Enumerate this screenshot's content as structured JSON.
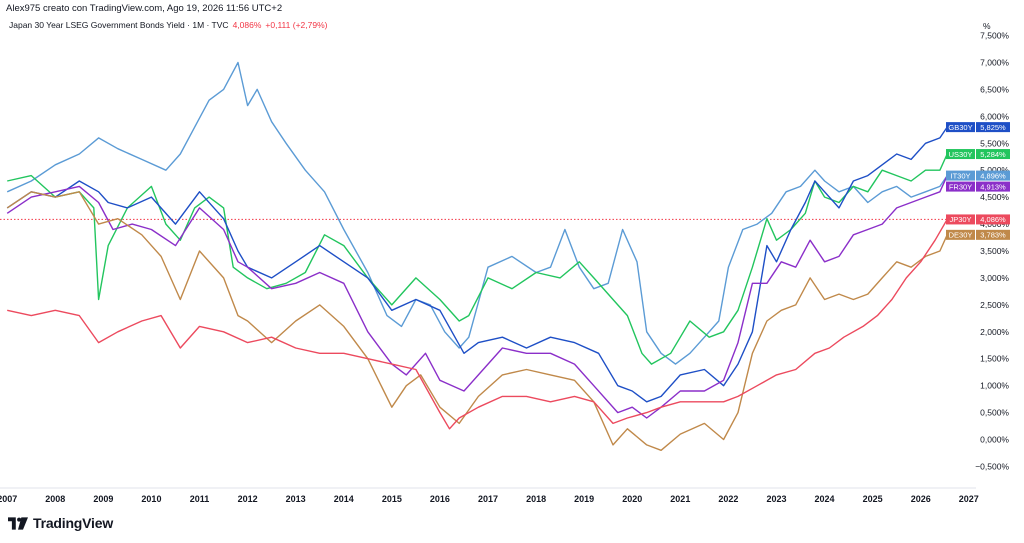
{
  "header": {
    "author_line": "Alex975 creato con TradingView.com, Ago 19, 2026 11:56 UTC+2"
  },
  "symbol": {
    "name": "Japan 30 Year LSEG Government Bonds Yield · 1M · TVC",
    "value": "4,086%",
    "change": "+0,111 (+2,79%)"
  },
  "brand": {
    "name": "TradingView",
    "logo_icon": "tradingview-logo-icon"
  },
  "chart_data": {
    "type": "line",
    "ylabel_unit": "%",
    "ylim": [
      -0.9,
      7.9
    ],
    "xlim": [
      2006.85,
      2027.15
    ],
    "y_ticks": [
      {
        "v": 7.5,
        "label": "7,500%"
      },
      {
        "v": 7.0,
        "label": "7,000%"
      },
      {
        "v": 6.5,
        "label": "6,500%"
      },
      {
        "v": 6.0,
        "label": "6,000%"
      },
      {
        "v": 5.5,
        "label": "5,500%"
      },
      {
        "v": 5.0,
        "label": "5,000%"
      },
      {
        "v": 4.5,
        "label": "4,500%"
      },
      {
        "v": 4.0,
        "label": "4,000%"
      },
      {
        "v": 3.5,
        "label": "3,500%"
      },
      {
        "v": 3.0,
        "label": "3,000%"
      },
      {
        "v": 2.5,
        "label": "2,500%"
      },
      {
        "v": 2.0,
        "label": "2,000%"
      },
      {
        "v": 1.5,
        "label": "1,500%"
      },
      {
        "v": 1.0,
        "label": "1,000%"
      },
      {
        "v": 0.5,
        "label": "0,500%"
      },
      {
        "v": 0.0,
        "label": "0,000%"
      },
      {
        "v": -0.5,
        "label": "−0,500%"
      }
    ],
    "x_ticks": [
      "2007",
      "2008",
      "2009",
      "2010",
      "2011",
      "2012",
      "2013",
      "2014",
      "2015",
      "2016",
      "2017",
      "2018",
      "2019",
      "2020",
      "2021",
      "2022",
      "2023",
      "2024",
      "2025",
      "2026",
      "2027"
    ],
    "reference_line": {
      "y": 4.086,
      "color": "#f23645"
    },
    "series": [
      {
        "name": "IT30Y",
        "tag_value": "4,896%",
        "color": "#5b9bd5",
        "x": [
          2007,
          2007.5,
          2008,
          2008.5,
          2008.9,
          2009.3,
          2009.8,
          2010.3,
          2010.6,
          2010.9,
          2011.2,
          2011.5,
          2011.8,
          2012,
          2012.2,
          2012.5,
          2012.8,
          2013.2,
          2013.6,
          2014,
          2014.5,
          2014.9,
          2015.2,
          2015.5,
          2015.8,
          2016.1,
          2016.4,
          2016.6,
          2017,
          2017.5,
          2018,
          2018.3,
          2018.6,
          2018.9,
          2019.2,
          2019.5,
          2019.8,
          2020.1,
          2020.3,
          2020.6,
          2020.9,
          2021.2,
          2021.5,
          2021.8,
          2022,
          2022.3,
          2022.6,
          2022.9,
          2023.2,
          2023.5,
          2023.8,
          2024,
          2024.3,
          2024.6,
          2024.9,
          2025.2,
          2025.5,
          2025.8,
          2026.1,
          2026.4,
          2026.55
        ],
        "y": [
          4.6,
          4.8,
          5.1,
          5.3,
          5.6,
          5.4,
          5.2,
          5.0,
          5.3,
          5.8,
          6.3,
          6.5,
          7.0,
          6.2,
          6.5,
          5.9,
          5.5,
          5.0,
          4.6,
          3.9,
          3.1,
          2.3,
          2.1,
          2.6,
          2.5,
          2.0,
          1.7,
          1.9,
          3.2,
          3.4,
          3.1,
          3.2,
          3.9,
          3.2,
          2.8,
          2.9,
          3.9,
          3.3,
          2.0,
          1.6,
          1.4,
          1.6,
          1.9,
          2.2,
          3.2,
          3.9,
          4.0,
          4.2,
          4.6,
          4.7,
          5.0,
          4.8,
          4.6,
          4.7,
          4.4,
          4.6,
          4.7,
          4.5,
          4.6,
          4.7,
          4.9
        ]
      },
      {
        "name": "US30Y",
        "tag_value": "5,284%",
        "color": "#22c55e",
        "x": [
          2007,
          2007.5,
          2008,
          2008.5,
          2008.8,
          2008.9,
          2009.1,
          2009.5,
          2010,
          2010.3,
          2010.6,
          2010.9,
          2011.2,
          2011.5,
          2011.7,
          2012,
          2012.4,
          2012.8,
          2013.2,
          2013.6,
          2014,
          2014.5,
          2015,
          2015.5,
          2016,
          2016.4,
          2016.6,
          2017,
          2017.5,
          2018,
          2018.5,
          2018.9,
          2019.2,
          2019.6,
          2019.9,
          2020.2,
          2020.4,
          2020.8,
          2021.2,
          2021.6,
          2021.9,
          2022.2,
          2022.5,
          2022.8,
          2023,
          2023.3,
          2023.6,
          2023.8,
          2024,
          2024.3,
          2024.6,
          2024.9,
          2025.2,
          2025.5,
          2025.8,
          2026.1,
          2026.4,
          2026.55
        ],
        "y": [
          4.8,
          4.9,
          4.5,
          4.6,
          4.3,
          2.6,
          3.6,
          4.3,
          4.7,
          4.0,
          3.7,
          4.3,
          4.5,
          4.3,
          3.2,
          3.0,
          2.8,
          2.9,
          3.1,
          3.8,
          3.6,
          3.0,
          2.5,
          3.0,
          2.6,
          2.2,
          2.3,
          3.0,
          2.8,
          3.1,
          3.0,
          3.3,
          3.0,
          2.6,
          2.3,
          1.6,
          1.4,
          1.6,
          2.2,
          1.9,
          2.0,
          2.4,
          3.2,
          4.1,
          3.7,
          3.9,
          4.2,
          4.8,
          4.5,
          4.4,
          4.7,
          4.6,
          5.0,
          4.9,
          4.8,
          5.0,
          5.0,
          5.3
        ]
      },
      {
        "name": "GB30Y",
        "tag_value": "5,825%",
        "color": "#1e4fc6",
        "x": [
          2007,
          2007.5,
          2008,
          2008.5,
          2008.9,
          2009.1,
          2009.5,
          2010,
          2010.5,
          2011,
          2011.5,
          2011.8,
          2012,
          2012.5,
          2013,
          2013.5,
          2014,
          2014.5,
          2015,
          2015.5,
          2016,
          2016.5,
          2016.8,
          2017.3,
          2017.8,
          2018.3,
          2018.8,
          2019.3,
          2019.7,
          2020,
          2020.3,
          2020.6,
          2021,
          2021.5,
          2021.9,
          2022.2,
          2022.5,
          2022.8,
          2023,
          2023.3,
          2023.6,
          2023.8,
          2024,
          2024.3,
          2024.6,
          2024.9,
          2025.2,
          2025.5,
          2025.8,
          2026.1,
          2026.4,
          2026.55
        ],
        "y": [
          4.3,
          4.6,
          4.5,
          4.8,
          4.6,
          4.4,
          4.3,
          4.5,
          4.0,
          4.6,
          4.1,
          3.5,
          3.2,
          3.0,
          3.3,
          3.6,
          3.3,
          3.0,
          2.4,
          2.6,
          2.4,
          1.6,
          1.8,
          1.9,
          1.7,
          1.9,
          1.8,
          1.6,
          1.0,
          0.9,
          0.7,
          0.8,
          1.2,
          1.3,
          1.0,
          1.4,
          2.0,
          3.6,
          3.3,
          3.9,
          4.4,
          4.8,
          4.6,
          4.3,
          4.8,
          4.9,
          5.1,
          5.3,
          5.2,
          5.5,
          5.6,
          5.8
        ]
      },
      {
        "name": "FR30Y",
        "tag_value": "4,913%",
        "color": "#8b2fc9",
        "x": [
          2007,
          2007.5,
          2008,
          2008.5,
          2008.9,
          2009.2,
          2009.6,
          2010,
          2010.5,
          2011,
          2011.5,
          2011.8,
          2012,
          2012.5,
          2013,
          2013.5,
          2014,
          2014.5,
          2015,
          2015.3,
          2015.7,
          2016,
          2016.5,
          2016.8,
          2017.3,
          2017.8,
          2018.3,
          2018.8,
          2019.2,
          2019.7,
          2020,
          2020.3,
          2020.6,
          2021,
          2021.5,
          2021.9,
          2022.2,
          2022.5,
          2022.8,
          2023.1,
          2023.4,
          2023.7,
          2024,
          2024.3,
          2024.6,
          2024.9,
          2025.2,
          2025.5,
          2025.8,
          2026.1,
          2026.4,
          2026.55
        ],
        "y": [
          4.2,
          4.5,
          4.6,
          4.7,
          4.4,
          3.9,
          4.0,
          3.9,
          3.6,
          4.3,
          3.9,
          3.3,
          3.2,
          2.8,
          2.9,
          3.1,
          2.9,
          2.0,
          1.4,
          1.2,
          1.6,
          1.1,
          0.9,
          1.2,
          1.7,
          1.6,
          1.6,
          1.4,
          1.0,
          0.5,
          0.6,
          0.4,
          0.6,
          0.9,
          0.9,
          1.1,
          1.8,
          2.9,
          2.9,
          3.3,
          3.2,
          3.7,
          3.3,
          3.4,
          3.8,
          3.9,
          4.0,
          4.3,
          4.4,
          4.5,
          4.6,
          4.9
        ]
      },
      {
        "name": "DE30Y",
        "tag_value": "3,783%",
        "color": "#c0894a",
        "x": [
          2007,
          2007.5,
          2008,
          2008.5,
          2008.9,
          2009.3,
          2009.8,
          2010.2,
          2010.6,
          2011,
          2011.5,
          2011.8,
          2012,
          2012.5,
          2013,
          2013.5,
          2014,
          2014.5,
          2015,
          2015.3,
          2015.6,
          2016,
          2016.4,
          2016.8,
          2017.3,
          2017.8,
          2018.3,
          2018.8,
          2019.2,
          2019.6,
          2019.9,
          2020.3,
          2020.6,
          2021,
          2021.5,
          2021.9,
          2022.2,
          2022.5,
          2022.8,
          2023.1,
          2023.4,
          2023.7,
          2024,
          2024.3,
          2024.6,
          2024.9,
          2025.2,
          2025.5,
          2025.8,
          2026.1,
          2026.4,
          2026.55
        ],
        "y": [
          4.3,
          4.6,
          4.5,
          4.6,
          4.0,
          4.1,
          3.8,
          3.4,
          2.6,
          3.5,
          3.0,
          2.3,
          2.2,
          1.8,
          2.2,
          2.5,
          2.1,
          1.5,
          0.6,
          1.0,
          1.2,
          0.6,
          0.3,
          0.8,
          1.2,
          1.3,
          1.2,
          1.1,
          0.7,
          -0.1,
          0.2,
          -0.1,
          -0.2,
          0.1,
          0.3,
          0.0,
          0.5,
          1.6,
          2.2,
          2.4,
          2.5,
          3.0,
          2.6,
          2.7,
          2.6,
          2.7,
          3.0,
          3.3,
          3.2,
          3.4,
          3.5,
          3.8
        ]
      },
      {
        "name": "JP30Y",
        "tag_value": "4,086%",
        "color": "#ec4a5e",
        "x": [
          2007,
          2007.5,
          2008,
          2008.5,
          2008.9,
          2009.3,
          2009.8,
          2010.2,
          2010.6,
          2011,
          2011.5,
          2012,
          2012.5,
          2013,
          2013.5,
          2014,
          2014.5,
          2015,
          2015.5,
          2016,
          2016.2,
          2016.4,
          2016.8,
          2017.3,
          2017.8,
          2018.3,
          2018.8,
          2019.2,
          2019.6,
          2019.9,
          2020.3,
          2020.6,
          2021,
          2021.5,
          2021.9,
          2022.2,
          2022.6,
          2023,
          2023.4,
          2023.8,
          2024.1,
          2024.4,
          2024.8,
          2025.1,
          2025.4,
          2025.7,
          2026,
          2026.3,
          2026.55
        ],
        "y": [
          2.4,
          2.3,
          2.4,
          2.3,
          1.8,
          2.0,
          2.2,
          2.3,
          1.7,
          2.1,
          2.0,
          1.8,
          1.9,
          1.7,
          1.6,
          1.6,
          1.5,
          1.4,
          1.3,
          0.5,
          0.2,
          0.4,
          0.6,
          0.8,
          0.8,
          0.7,
          0.8,
          0.7,
          0.3,
          0.4,
          0.5,
          0.6,
          0.7,
          0.7,
          0.7,
          0.8,
          1.0,
          1.2,
          1.3,
          1.6,
          1.7,
          1.9,
          2.1,
          2.3,
          2.6,
          3.0,
          3.3,
          3.7,
          4.086
        ]
      }
    ]
  }
}
